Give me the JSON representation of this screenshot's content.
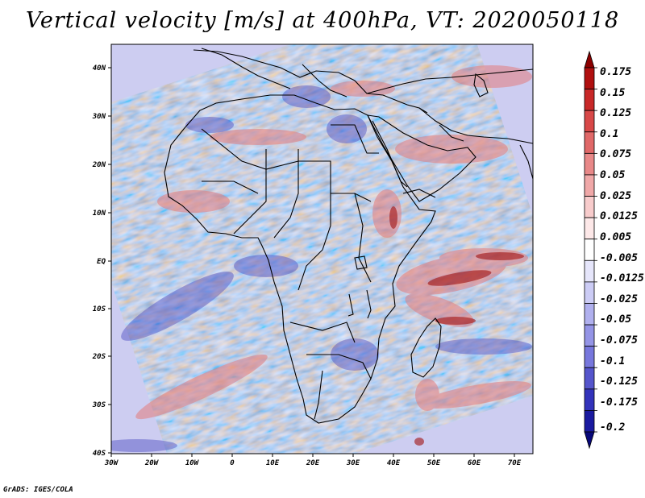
{
  "title": "Vertical velocity [m/s] at 400hPa, VT: 2020050118",
  "credit": "GrADS: IGES/COLA",
  "map": {
    "lon_range": [
      -30,
      75
    ],
    "lat_range": [
      -40,
      45
    ],
    "lon_ticks": [
      "30W",
      "20W",
      "10W",
      "0",
      "10E",
      "20E",
      "30E",
      "40E",
      "50E",
      "60E",
      "70E"
    ],
    "lat_ticks": [
      "40N",
      "30N",
      "20N",
      "10N",
      "EQ",
      "10S",
      "20S",
      "30S",
      "40S"
    ]
  },
  "colorbar": {
    "labels": [
      "0.175",
      "0.15",
      "0.125",
      "0.1",
      "0.075",
      "0.05",
      "0.025",
      "0.0125",
      "0.005",
      "-0.005",
      "-0.0125",
      "-0.025",
      "-0.05",
      "-0.075",
      "-0.1",
      "-0.125",
      "-0.175",
      "-0.2"
    ],
    "colors": [
      "#8b0000",
      "#b01010",
      "#c82828",
      "#d84848",
      "#e06868",
      "#e88888",
      "#f0a8a8",
      "#f8cccc",
      "#fde8e8",
      "#ffffff",
      "#e6e6fb",
      "#ccccf5",
      "#b0b0ee",
      "#9494e6",
      "#7777dd",
      "#5555cc",
      "#3333bb",
      "#1a1aa0",
      "#08087a"
    ]
  }
}
